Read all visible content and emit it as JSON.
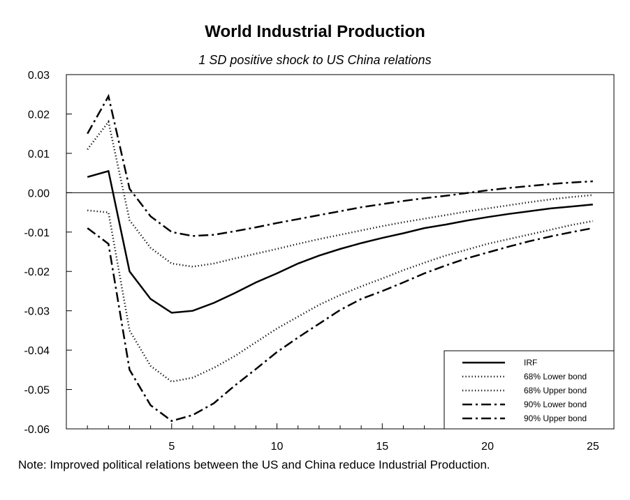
{
  "chart_data": {
    "type": "line",
    "title": "World Industrial Production",
    "subtitle": "1 SD positive shock to US China relations",
    "xlabel": "",
    "ylabel": "",
    "xlim": [
      0,
      26
    ],
    "ylim": [
      -0.06,
      0.03
    ],
    "x_ticks": [
      "5",
      "10",
      "15",
      "20",
      "25"
    ],
    "y_ticks": [
      "0.03",
      "0.02",
      "0.01",
      "0.00",
      "-0.01",
      "-0.02",
      "-0.03",
      "-0.04",
      "-0.05",
      "-0.06"
    ],
    "zero_line": true,
    "grid": false,
    "legend_position": "bottom-right",
    "x": [
      1,
      2,
      3,
      4,
      5,
      6,
      7,
      8,
      9,
      10,
      11,
      12,
      13,
      14,
      15,
      16,
      17,
      18,
      19,
      20,
      21,
      22,
      23,
      24,
      25
    ],
    "series": [
      {
        "name": "IRF",
        "style": "solid",
        "values": [
          0.004,
          0.0055,
          -0.02,
          -0.027,
          -0.0305,
          -0.03,
          -0.028,
          -0.0255,
          -0.0228,
          -0.0205,
          -0.018,
          -0.016,
          -0.0143,
          -0.0128,
          -0.0115,
          -0.0103,
          -0.009,
          -0.0081,
          -0.0071,
          -0.0062,
          -0.0054,
          -0.0047,
          -0.004,
          -0.0035,
          -0.003
        ]
      },
      {
        "name": "68% Lower bond",
        "style": "dotted",
        "values": [
          -0.0045,
          -0.005,
          -0.035,
          -0.044,
          -0.048,
          -0.047,
          -0.0445,
          -0.0415,
          -0.038,
          -0.0345,
          -0.0315,
          -0.0285,
          -0.026,
          -0.0238,
          -0.0218,
          -0.0197,
          -0.0178,
          -0.016,
          -0.0145,
          -0.013,
          -0.0118,
          -0.0106,
          -0.0094,
          -0.0082,
          -0.0072
        ]
      },
      {
        "name": "68% Upper bond",
        "style": "dotted",
        "values": [
          0.011,
          0.018,
          -0.007,
          -0.014,
          -0.018,
          -0.0188,
          -0.018,
          -0.0167,
          -0.0155,
          -0.0143,
          -0.013,
          -0.0118,
          -0.0107,
          -0.0096,
          -0.0085,
          -0.0075,
          -0.0066,
          -0.0057,
          -0.0048,
          -0.004,
          -0.0032,
          -0.0024,
          -0.0017,
          -0.0011,
          -0.0006
        ]
      },
      {
        "name": "90% Lower bond",
        "style": "dashdot",
        "values": [
          -0.009,
          -0.013,
          -0.045,
          -0.054,
          -0.058,
          -0.0565,
          -0.0535,
          -0.049,
          -0.0448,
          -0.0405,
          -0.0368,
          -0.0333,
          -0.0298,
          -0.027,
          -0.025,
          -0.0228,
          -0.0205,
          -0.0185,
          -0.0167,
          -0.0152,
          -0.0137,
          -0.0123,
          -0.0111,
          -0.01,
          -0.009
        ]
      },
      {
        "name": "90% Upper bond",
        "style": "dashdot",
        "values": [
          0.015,
          0.0245,
          0.001,
          -0.006,
          -0.01,
          -0.011,
          -0.0107,
          -0.0098,
          -0.0088,
          -0.0077,
          -0.0067,
          -0.0057,
          -0.0047,
          -0.0037,
          -0.0029,
          -0.0021,
          -0.0014,
          -0.0008,
          -0.0001,
          0.0006,
          0.0012,
          0.0017,
          0.0022,
          0.0026,
          0.0029
        ]
      }
    ],
    "note": "Note: Improved political relations between the US and China reduce Industrial Production."
  }
}
